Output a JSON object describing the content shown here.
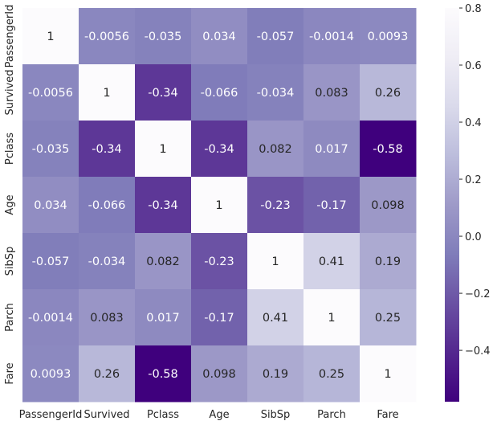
{
  "chart_data": {
    "type": "heatmap",
    "title": "",
    "colormap": "Purples_r",
    "colors": {
      "low": "#3f007d",
      "mid": "#807dba",
      "high": "#fcfbfd"
    },
    "rows": [
      "PassengerId",
      "Survived",
      "Pclass",
      "Age",
      "SibSp",
      "Parch",
      "Fare"
    ],
    "columns": [
      "PassengerId",
      "Survived",
      "Pclass",
      "Age",
      "SibSp",
      "Parch",
      "Fare"
    ],
    "values": [
      [
        1,
        -0.0056,
        -0.035,
        0.034,
        -0.057,
        -0.0014,
        0.0093
      ],
      [
        -0.0056,
        1,
        -0.34,
        -0.066,
        -0.034,
        0.083,
        0.26
      ],
      [
        -0.035,
        -0.34,
        1,
        -0.34,
        0.082,
        0.017,
        -0.58
      ],
      [
        0.034,
        -0.066,
        -0.34,
        1,
        -0.23,
        -0.17,
        0.098
      ],
      [
        -0.057,
        -0.034,
        0.082,
        -0.23,
        1,
        0.41,
        0.19
      ],
      [
        -0.0014,
        0.083,
        0.017,
        -0.17,
        0.41,
        1,
        0.25
      ],
      [
        0.0093,
        0.26,
        -0.58,
        0.098,
        0.19,
        0.25,
        1
      ]
    ],
    "annotations": [
      [
        "1",
        "-0.0056",
        "-0.035",
        "0.034",
        "-0.057",
        "-0.0014",
        "0.0093"
      ],
      [
        "-0.0056",
        "1",
        "-0.34",
        "-0.066",
        "-0.034",
        "0.083",
        "0.26"
      ],
      [
        "-0.035",
        "-0.34",
        "1",
        "-0.34",
        "0.082",
        "0.017",
        "-0.58"
      ],
      [
        "0.034",
        "-0.066",
        "-0.34",
        "1",
        "-0.23",
        "-0.17",
        "0.098"
      ],
      [
        "-0.057",
        "-0.034",
        "0.082",
        "-0.23",
        "1",
        "0.41",
        "0.19"
      ],
      [
        "-0.0014",
        "0.083",
        "0.017",
        "-0.17",
        "0.41",
        "1",
        "0.25"
      ],
      [
        "0.0093",
        "0.26",
        "-0.58",
        "0.098",
        "0.19",
        "0.25",
        "1"
      ]
    ],
    "colorbar": {
      "range": [
        -0.58,
        0.8
      ],
      "ticks": [
        0.8,
        0.6,
        0.4,
        0.2,
        0.0,
        -0.2,
        -0.4
      ],
      "tick_labels": [
        "0.8",
        "0.6",
        "0.4",
        "0.2",
        "0.0",
        "−0.2",
        "−0.4"
      ]
    }
  }
}
